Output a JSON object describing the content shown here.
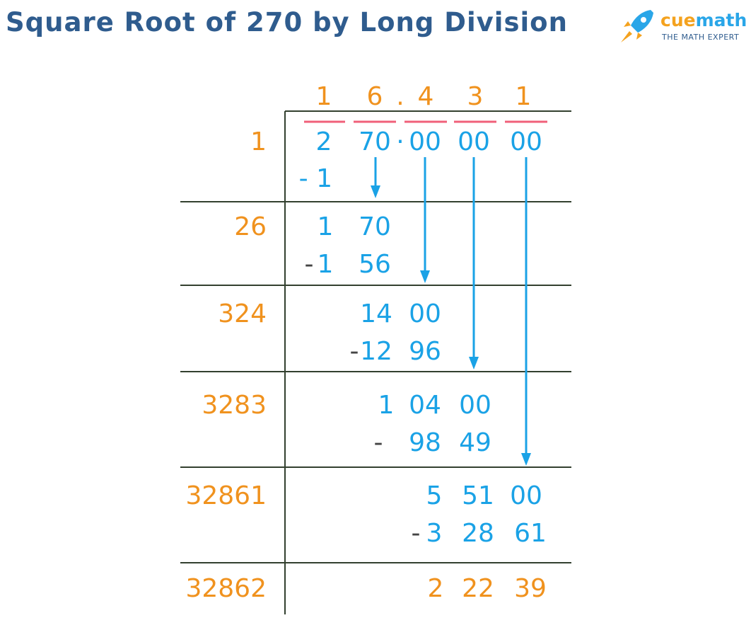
{
  "title": "Square Root of 270 by Long Division",
  "brand": {
    "part1": "cue",
    "part2": "math",
    "tagline": "THE MATH EXPERT"
  },
  "colors": {
    "title": "#2f5c8e",
    "quotient": "#f0921e",
    "divisor": "#f0921e",
    "dividend": "#1aa2e6",
    "sign": "#444444",
    "rule": "#33402f",
    "bar": "#f0607a",
    "remainder": "#f0921e"
  },
  "quotient": [
    "1",
    "6",
    ".",
    "4",
    "3",
    "1"
  ],
  "dividend_groups": [
    "2",
    "70",
    "·",
    "00",
    "00",
    "00"
  ],
  "steps": [
    {
      "divisor": "1",
      "subtract": [
        "- 1"
      ]
    },
    {
      "divisor": "26",
      "value": [
        "1",
        "70"
      ],
      "subtract": [
        "-",
        "1",
        "56"
      ]
    },
    {
      "divisor": "324",
      "value": [
        "14",
        "00"
      ],
      "subtract": [
        "-",
        "12",
        "96"
      ]
    },
    {
      "divisor": "3283",
      "value": [
        "1",
        "04",
        "00"
      ],
      "subtract": [
        "-",
        "98",
        "49"
      ]
    },
    {
      "divisor": "32861",
      "value": [
        "5",
        "51",
        "00"
      ],
      "subtract": [
        "-",
        "3",
        "28",
        "61"
      ]
    },
    {
      "divisor": "32862",
      "remainder": [
        "2",
        "22",
        "39"
      ]
    }
  ]
}
